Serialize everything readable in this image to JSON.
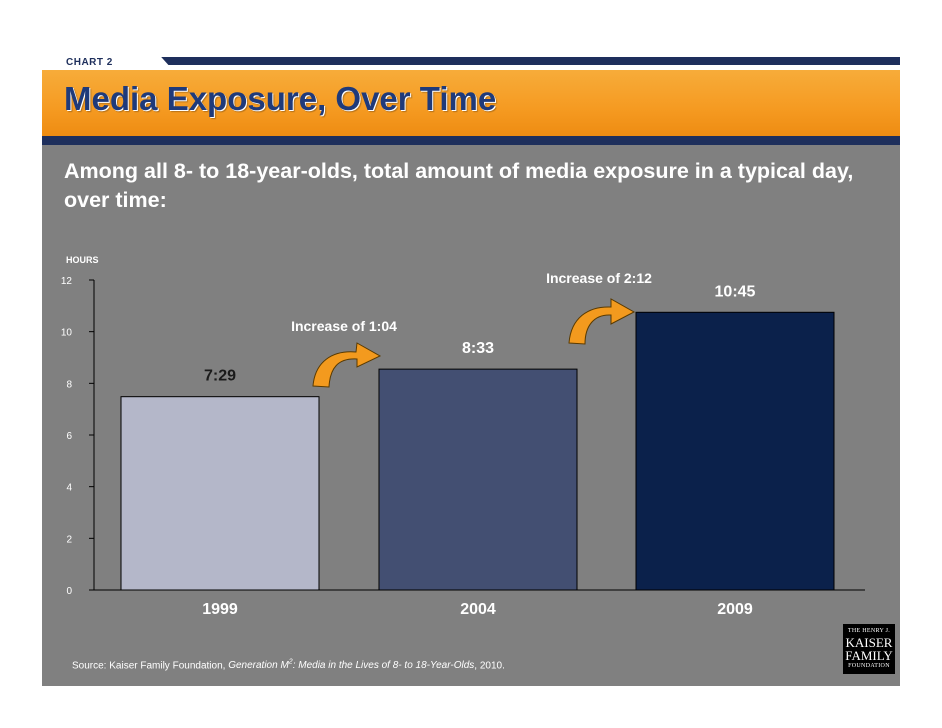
{
  "header": {
    "chart_tag": "CHART 2",
    "title": "Media Exposure, Over Time",
    "subtitle": "Among all 8- to 18-year-olds, total amount of media exposure in a typical day, over time:"
  },
  "chart_data": {
    "type": "bar",
    "ylabel": "HOURS",
    "ylim": [
      0,
      12
    ],
    "yticks": [
      0,
      2,
      4,
      6,
      8,
      10,
      12
    ],
    "categories": [
      "1999",
      "2004",
      "2009"
    ],
    "values": [
      7.483,
      8.55,
      10.75
    ],
    "data_labels": [
      "7:29",
      "8:33",
      "10:45"
    ],
    "bar_colors": [
      "#b4b7c9",
      "#434f72",
      "#0b214b"
    ],
    "annotations": [
      "Increase of 1:04",
      "Increase of 2:12"
    ],
    "grid": false
  },
  "footer": {
    "source_prefix": "Source: Kaiser Family Foundation, ",
    "source_title": "Generation M",
    "source_sup": "2",
    "source_title_rest": ": Media in the Lives of 8- to 18-Year-Olds",
    "source_suffix": ", 2010."
  },
  "logo": {
    "line1": "THE HENRY J.",
    "line2": "KAISER",
    "line3": "FAMILY",
    "line4": "FOUNDATION"
  },
  "colors": {
    "navy": "#1e2f5c",
    "orange": "#f59a21",
    "panel": "#808080",
    "arrow": "#f39a1e"
  }
}
